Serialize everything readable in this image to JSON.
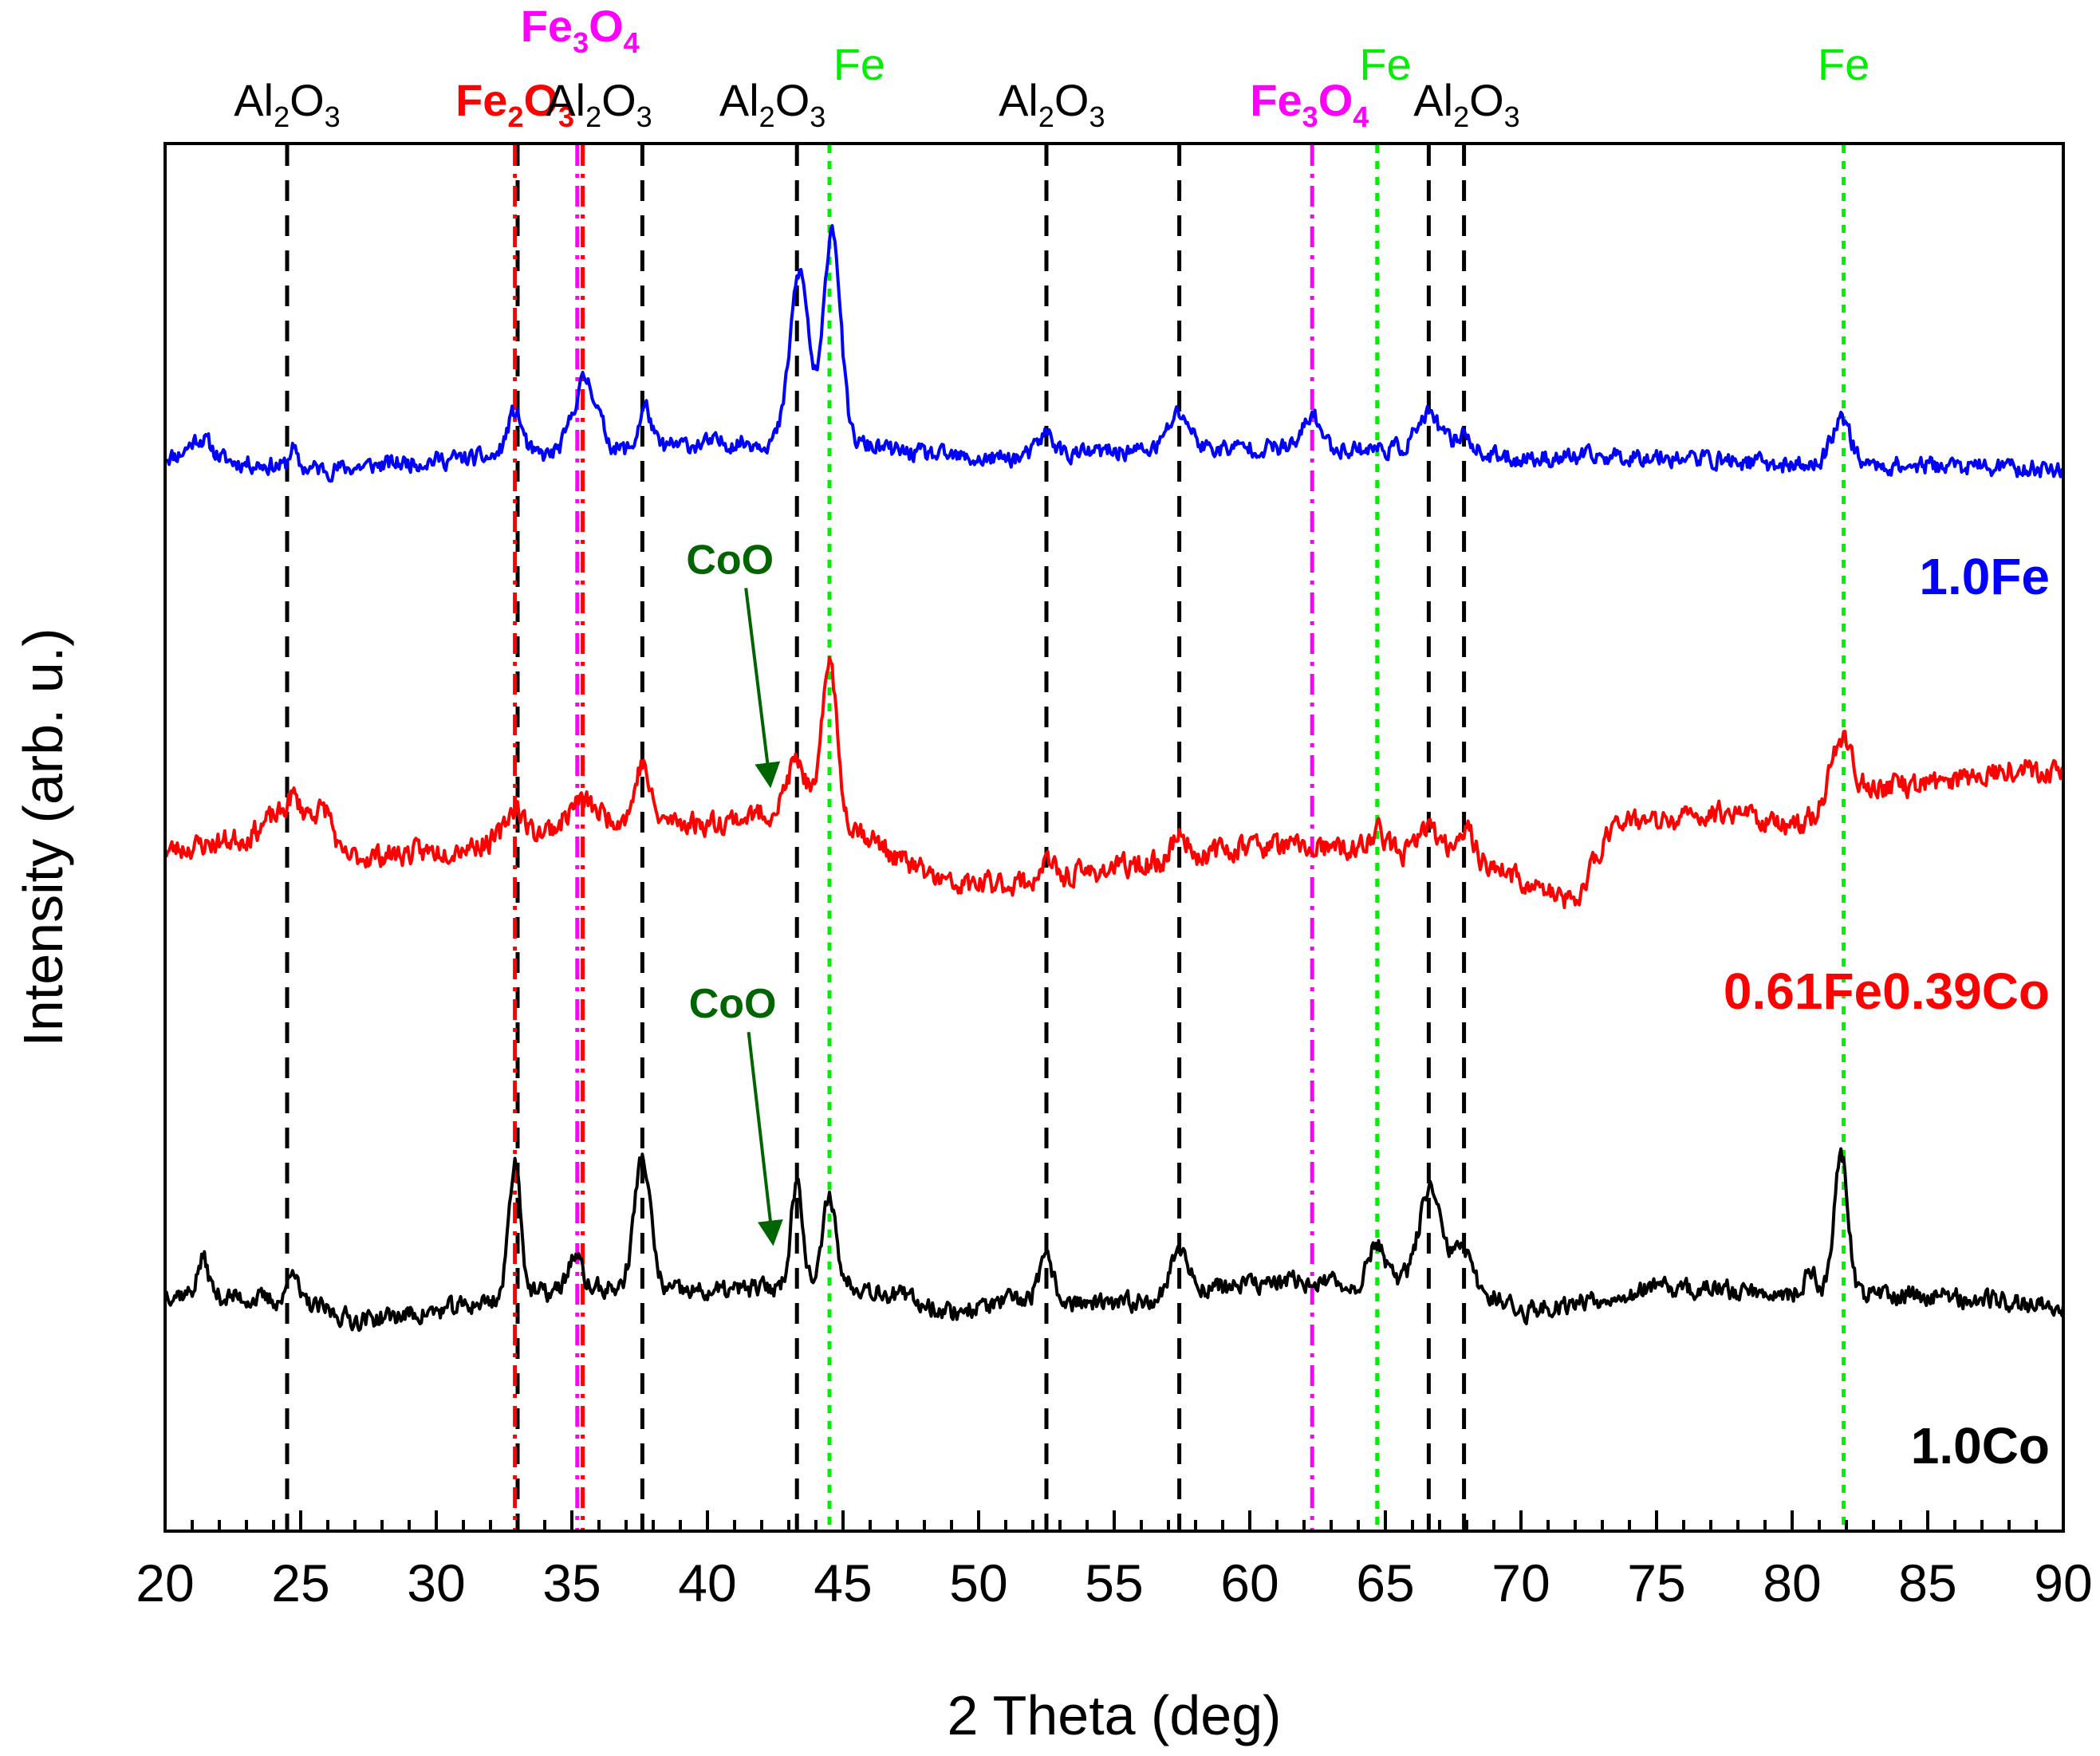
{
  "colors": {
    "al2o3": "#000000",
    "fe2o3": "#ff0000",
    "fe3o4": "#ff00ff",
    "fe": "#00ee00",
    "coo": "#006400",
    "series_fe": "#0000ff",
    "series_feco": "#ff0000",
    "series_co": "#000000"
  },
  "chart_data": {
    "type": "line",
    "title": "",
    "xlabel": "2 Theta (deg)",
    "ylabel": "Intensity (arb. u.)",
    "xlim": [
      20,
      90
    ],
    "ylim": [
      0,
      100
    ],
    "x_ticks": [
      "20",
      "25",
      "30",
      "35",
      "40",
      "45",
      "50",
      "55",
      "60",
      "65",
      "70",
      "75",
      "80",
      "85",
      "90"
    ],
    "y_ticks_shown": false,
    "reference_lines": [
      {
        "phase": "Al2O3",
        "style": "dashed",
        "color": "#000000",
        "positions": [
          24.5,
          33.0,
          37.6,
          43.3,
          52.5,
          57.4,
          66.6,
          67.9
        ]
      },
      {
        "phase": "Fe2O3",
        "style": "dash-dot",
        "color": "#ff0000",
        "positions": [
          32.9,
          35.4
        ]
      },
      {
        "phase": "Fe3O4",
        "style": "dash-dot",
        "color": "#ff00ff",
        "positions": [
          35.2,
          62.3
        ]
      },
      {
        "phase": "Fe",
        "style": "dotted",
        "color": "#00ee00",
        "positions": [
          44.5,
          64.7,
          81.9
        ]
      }
    ],
    "phase_labels": [
      {
        "base": "Al",
        "sub1": "2",
        "mid": "O",
        "sub2": "3",
        "x": 24.5,
        "tier": "low",
        "color": "#000000",
        "bold": false
      },
      {
        "base": "Fe",
        "sub1": "2",
        "mid": "O",
        "sub2": "3",
        "x": 32.9,
        "tier": "low",
        "color": "#ff0000",
        "bold": true
      },
      {
        "base": "Fe",
        "sub1": "3",
        "mid": "O",
        "sub2": "4",
        "x": 35.3,
        "tier": "high",
        "color": "#ff00ff",
        "bold": true
      },
      {
        "base": "Al",
        "sub1": "2",
        "mid": "O",
        "sub2": "3",
        "x": 36.0,
        "tier": "low",
        "color": "#000000",
        "bold": false
      },
      {
        "base": "Al",
        "sub1": "2",
        "mid": "O",
        "sub2": "3",
        "x": 42.4,
        "tier": "low",
        "color": "#000000",
        "bold": false
      },
      {
        "base": "Fe",
        "sub1": "",
        "mid": "",
        "sub2": "",
        "x": 45.6,
        "tier": "mid",
        "color": "#00ee00",
        "bold": false
      },
      {
        "base": "Al",
        "sub1": "2",
        "mid": "O",
        "sub2": "3",
        "x": 52.7,
        "tier": "low",
        "color": "#000000",
        "bold": false
      },
      {
        "base": "Fe",
        "sub1": "3",
        "mid": "O",
        "sub2": "4",
        "x": 62.2,
        "tier": "low",
        "color": "#ff00ff",
        "bold": true
      },
      {
        "base": "Fe",
        "sub1": "",
        "mid": "",
        "sub2": "",
        "x": 65.0,
        "tier": "mid",
        "color": "#00ee00",
        "bold": false
      },
      {
        "base": "Al",
        "sub1": "2",
        "mid": "O",
        "sub2": "3",
        "x": 68.0,
        "tier": "low",
        "color": "#000000",
        "bold": false
      },
      {
        "base": "Fe",
        "sub1": "",
        "mid": "",
        "sub2": "",
        "x": 81.9,
        "tier": "mid",
        "color": "#00ee00",
        "bold": false
      }
    ],
    "annotations": [
      {
        "text": "CoO",
        "series": "0.61Fe0.39Co",
        "points_to": 42.3
      },
      {
        "text": "CoO",
        "series": "1.0Co",
        "points_to": 42.4
      }
    ],
    "series": [
      {
        "name": "1.0Fe",
        "color": "#0000ff",
        "baseline": 78,
        "noise": 1.0,
        "seed": 11,
        "points": [
          [
            20,
            77.5
          ],
          [
            24,
            76.8
          ],
          [
            26,
            76.5
          ],
          [
            30,
            77.2
          ],
          [
            35,
            77.6
          ],
          [
            40,
            78.4
          ],
          [
            45,
            78.6
          ],
          [
            47,
            77.8
          ],
          [
            50,
            77.2
          ],
          [
            55,
            77.8
          ],
          [
            60,
            78.1
          ],
          [
            65,
            78.0
          ],
          [
            70,
            77.3
          ],
          [
            75,
            77.5
          ],
          [
            80,
            76.8
          ],
          [
            85,
            76.8
          ],
          [
            90,
            76.5
          ]
        ],
        "peaks": [
          {
            "x": 21.3,
            "h": 1.5,
            "w": 0.4
          },
          {
            "x": 24.7,
            "h": 1.4,
            "w": 0.12
          },
          {
            "x": 32.9,
            "h": 3.2,
            "w": 0.28
          },
          {
            "x": 35.5,
            "h": 5.3,
            "w": 0.45
          },
          {
            "x": 37.7,
            "h": 3.0,
            "w": 0.22
          },
          {
            "x": 43.4,
            "h": 12.2,
            "w": 0.35
          },
          {
            "x": 44.6,
            "h": 15.5,
            "w": 0.3
          },
          {
            "x": 52.5,
            "h": 1.6,
            "w": 0.3
          },
          {
            "x": 57.4,
            "h": 2.6,
            "w": 0.4
          },
          {
            "x": 62.3,
            "h": 2.4,
            "w": 0.3
          },
          {
            "x": 66.6,
            "h": 2.6,
            "w": 0.45
          },
          {
            "x": 67.9,
            "h": 1.5,
            "w": 0.3
          },
          {
            "x": 81.8,
            "h": 3.5,
            "w": 0.35
          }
        ]
      },
      {
        "name": "0.61Fe0.39Co",
        "color": "#ff0000",
        "baseline": 48,
        "noise": 1.3,
        "seed": 23,
        "points": [
          [
            20,
            49.0
          ],
          [
            23,
            50.0
          ],
          [
            24,
            51.5
          ],
          [
            26,
            52.0
          ],
          [
            26.5,
            48.5
          ],
          [
            30,
            49.0
          ],
          [
            33,
            50.0
          ],
          [
            36,
            51.5
          ],
          [
            40,
            51.0
          ],
          [
            43,
            52.0
          ],
          [
            45,
            51.5
          ],
          [
            47,
            48.5
          ],
          [
            49,
            46.5
          ],
          [
            52,
            46.8
          ],
          [
            55,
            47.8
          ],
          [
            57,
            48.2
          ],
          [
            60,
            49.5
          ],
          [
            64,
            49.0
          ],
          [
            68,
            48.8
          ],
          [
            71,
            46.0
          ],
          [
            72,
            45.2
          ],
          [
            73.5,
            51.5
          ],
          [
            75,
            51.0
          ],
          [
            78,
            52.0
          ],
          [
            80,
            50.5
          ],
          [
            82,
            53.5
          ],
          [
            85,
            53.8
          ],
          [
            88,
            55.0
          ],
          [
            90,
            54.8
          ]
        ],
        "peaks": [
          {
            "x": 24.7,
            "h": 1.3,
            "w": 0.2
          },
          {
            "x": 32.9,
            "h": 2.3,
            "w": 0.3
          },
          {
            "x": 35.3,
            "h": 1.5,
            "w": 0.4
          },
          {
            "x": 37.6,
            "h": 4.0,
            "w": 0.25
          },
          {
            "x": 43.3,
            "h": 3.5,
            "w": 0.35
          },
          {
            "x": 44.5,
            "h": 11.5,
            "w": 0.25
          },
          {
            "x": 52.5,
            "h": 1.2,
            "w": 0.25
          },
          {
            "x": 57.4,
            "h": 1.8,
            "w": 0.3
          },
          {
            "x": 64.7,
            "h": 1.5,
            "w": 0.3
          },
          {
            "x": 66.6,
            "h": 2.0,
            "w": 0.3
          },
          {
            "x": 67.9,
            "h": 2.0,
            "w": 0.3
          },
          {
            "x": 81.8,
            "h": 4.0,
            "w": 0.35
          }
        ]
      },
      {
        "name": "1.0Co",
        "color": "#000000",
        "baseline": 17,
        "noise": 1.1,
        "seed": 37,
        "points": [
          [
            20,
            17.2
          ],
          [
            25,
            16.5
          ],
          [
            27,
            15.2
          ],
          [
            30,
            15.8
          ],
          [
            33,
            17.0
          ],
          [
            36,
            17.5
          ],
          [
            40,
            17.2
          ],
          [
            45,
            18.0
          ],
          [
            47,
            17.0
          ],
          [
            49,
            15.8
          ],
          [
            52,
            16.8
          ],
          [
            55,
            16.2
          ],
          [
            58,
            17.5
          ],
          [
            62,
            18.0
          ],
          [
            65,
            17.5
          ],
          [
            67,
            19.5
          ],
          [
            68.5,
            17.5
          ],
          [
            70,
            15.8
          ],
          [
            75,
            17.5
          ],
          [
            80,
            17.2
          ],
          [
            85,
            17.0
          ],
          [
            90,
            16.2
          ]
        ],
        "peaks": [
          {
            "x": 21.4,
            "h": 2.6,
            "w": 0.2
          },
          {
            "x": 24.7,
            "h": 2.8,
            "w": 0.15
          },
          {
            "x": 32.9,
            "h": 9.8,
            "w": 0.22
          },
          {
            "x": 35.1,
            "h": 2.5,
            "w": 0.25
          },
          {
            "x": 37.6,
            "h": 9.5,
            "w": 0.3
          },
          {
            "x": 43.3,
            "h": 7.5,
            "w": 0.22
          },
          {
            "x": 44.5,
            "h": 6.5,
            "w": 0.22
          },
          {
            "x": 52.5,
            "h": 2.8,
            "w": 0.25
          },
          {
            "x": 57.4,
            "h": 3.2,
            "w": 0.3
          },
          {
            "x": 64.7,
            "h": 3.3,
            "w": 0.3
          },
          {
            "x": 66.6,
            "h": 5.5,
            "w": 0.35
          },
          {
            "x": 67.8,
            "h": 2.0,
            "w": 0.3
          },
          {
            "x": 80.7,
            "h": 1.5,
            "w": 0.2
          },
          {
            "x": 81.8,
            "h": 10.2,
            "w": 0.25
          }
        ]
      }
    ],
    "series_labels": [
      {
        "name": "1.0Fe",
        "color": "#0000ff"
      },
      {
        "name": "0.61Fe0.39Co",
        "color": "#ff0000"
      },
      {
        "name": "1.0Co",
        "color": "#000000"
      }
    ]
  }
}
